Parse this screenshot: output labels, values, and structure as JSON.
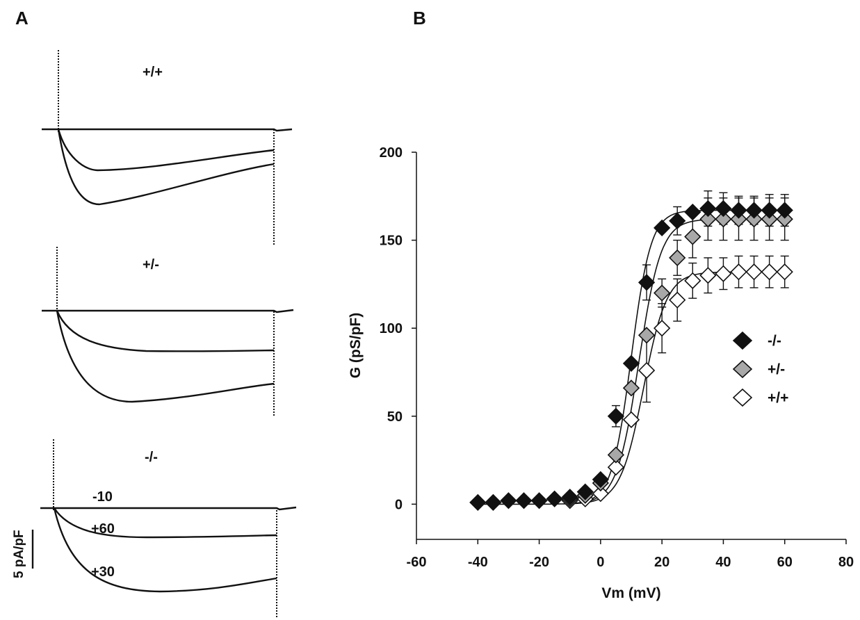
{
  "panels": {
    "a": {
      "label": "A",
      "traces": [
        {
          "genotype": "+/+"
        },
        {
          "genotype": "+/-"
        },
        {
          "genotype": "-/-",
          "voltage_labels": [
            "-10",
            "+60",
            "+30"
          ]
        }
      ],
      "scale_bar": "5 pA/pF"
    },
    "b": {
      "label": "B"
    }
  },
  "chart_data": {
    "type": "scatter",
    "title": "",
    "xlabel": "Vm (mV)",
    "ylabel": "G (pS/pF)",
    "xlim": [
      -60,
      80
    ],
    "ylim": [
      -20,
      200
    ],
    "xticks": [
      -60,
      -40,
      -20,
      0,
      20,
      40,
      60,
      80
    ],
    "yticks": [
      0,
      50,
      100,
      150,
      200
    ],
    "grid": false,
    "legend_position": "right-middle",
    "fit_curves": true,
    "series": [
      {
        "name": "-/-",
        "marker": "filled-diamond",
        "color": "#111111",
        "x": [
          -40,
          -35,
          -30,
          -25,
          -20,
          -15,
          -10,
          -5,
          0,
          5,
          10,
          15,
          20,
          25,
          30,
          35,
          40,
          45,
          50,
          55,
          60
        ],
        "y": [
          1,
          1,
          2,
          2,
          2,
          3,
          4,
          7,
          14,
          50,
          80,
          126,
          157,
          161,
          166,
          168,
          168,
          167,
          167,
          167,
          167
        ],
        "err": [
          0,
          0,
          0,
          0,
          0,
          0,
          0,
          0,
          0,
          6,
          0,
          10,
          0,
          8,
          0,
          10,
          9,
          8,
          8,
          9,
          9
        ]
      },
      {
        "name": "+/-",
        "marker": "gray-diamond",
        "color": "#a8a8a8",
        "x": [
          -10,
          -5,
          0,
          5,
          10,
          15,
          20,
          25,
          30,
          35,
          40,
          45,
          50,
          55,
          60
        ],
        "y": [
          3,
          5,
          12,
          28,
          66,
          96,
          120,
          140,
          152,
          162,
          162,
          162,
          162,
          162,
          162
        ],
        "err": [
          0,
          0,
          0,
          0,
          0,
          0,
          8,
          10,
          12,
          12,
          12,
          12,
          12,
          12,
          12
        ]
      },
      {
        "name": "+/+",
        "marker": "open-diamond",
        "color": "#ffffff",
        "x": [
          -10,
          -5,
          0,
          5,
          10,
          15,
          20,
          25,
          30,
          35,
          40,
          45,
          50,
          55,
          60
        ],
        "y": [
          2,
          3,
          6,
          21,
          48,
          76,
          100,
          116,
          127,
          130,
          131,
          132,
          132,
          132,
          132
        ],
        "err": [
          0,
          0,
          0,
          0,
          0,
          18,
          14,
          12,
          10,
          10,
          9,
          9,
          9,
          9,
          9
        ]
      }
    ]
  }
}
